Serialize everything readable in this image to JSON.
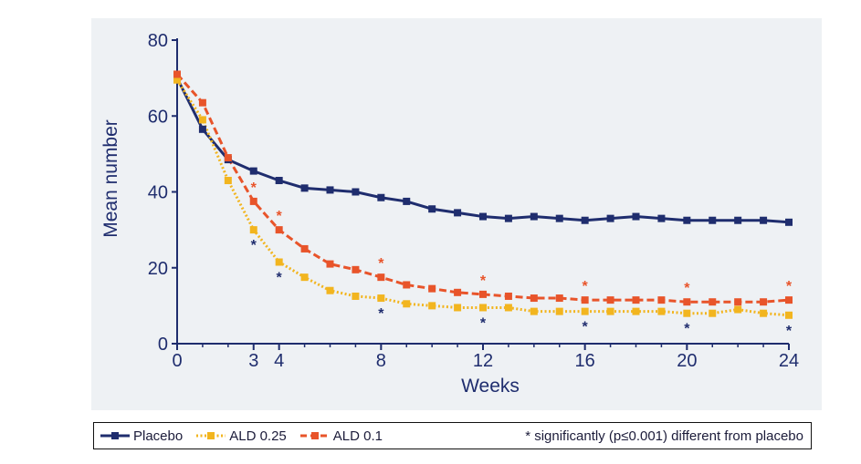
{
  "chart_data": {
    "type": "line",
    "xlabel": "Weeks",
    "ylabel": "Mean number",
    "xlim": [
      0,
      24
    ],
    "ylim": [
      0,
      80
    ],
    "x_ticks": [
      0,
      3,
      4,
      8,
      12,
      16,
      20,
      24
    ],
    "y_ticks": [
      0,
      20,
      40,
      60,
      80
    ],
    "x": [
      0,
      1,
      2,
      3,
      4,
      5,
      6,
      7,
      8,
      9,
      10,
      11,
      12,
      13,
      14,
      15,
      16,
      17,
      18,
      19,
      20,
      21,
      22,
      23,
      24
    ],
    "series": [
      {
        "name": "Placebo",
        "color": "#1f2d6e",
        "style": "solid",
        "values": [
          70,
          56.5,
          48.5,
          45.5,
          43,
          41,
          40.5,
          40,
          38.5,
          37.5,
          35.5,
          34.5,
          33.5,
          33,
          33.5,
          33,
          32.5,
          33,
          33.5,
          33,
          32.5,
          32.5,
          32.5,
          32.5,
          32
        ]
      },
      {
        "name": "ALD 0.25",
        "color": "#f2b51f",
        "style": "dotted",
        "values": [
          69.5,
          59,
          43,
          30,
          21.5,
          17.5,
          14,
          12.5,
          12,
          10.5,
          10,
          9.5,
          9.5,
          9.5,
          8.5,
          8.5,
          8.5,
          8.5,
          8.5,
          8.5,
          8,
          8,
          9,
          8,
          7.5
        ]
      },
      {
        "name": "ALD 0.1",
        "color": "#e8542a",
        "style": "dashed",
        "values": [
          71,
          63.5,
          49,
          37.5,
          30,
          25,
          21,
          19.5,
          17.5,
          15.5,
          14.5,
          13.5,
          13,
          12.5,
          12,
          12,
          11.5,
          11.5,
          11.5,
          11.5,
          11,
          11,
          11,
          11,
          11.5
        ]
      }
    ],
    "significance": {
      "marker": "*",
      "weeks": [
        3,
        4,
        8,
        12,
        16,
        20,
        24
      ],
      "note": "* significantly (p≤0.001) different from placebo"
    }
  },
  "colors": {
    "axis": "#1f2d6e",
    "panel_bg": "#eef1f4"
  },
  "legend": {
    "items": [
      "Placebo",
      "ALD 0.25",
      "ALD 0.1"
    ],
    "note": "* significantly (p≤0.001) different from placebo"
  }
}
